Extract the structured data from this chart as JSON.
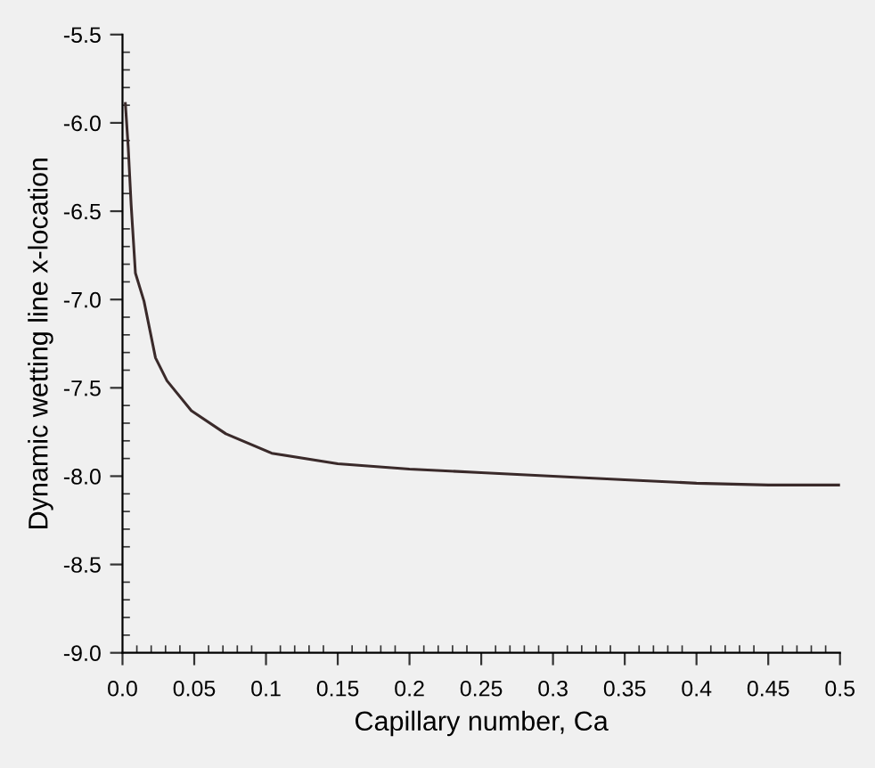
{
  "chart_data": {
    "type": "line",
    "xlabel": "Capillary number, Ca",
    "ylabel": "Dynamic wetting line x-location",
    "x": [
      0.002,
      0.004,
      0.006,
      0.009,
      0.015,
      0.023,
      0.031,
      0.048,
      0.072,
      0.104,
      0.15,
      0.2,
      0.25,
      0.3,
      0.35,
      0.4,
      0.45,
      0.5
    ],
    "series": [
      {
        "color": "#3a2a2a",
        "values": [
          -5.89,
          -6.14,
          -6.46,
          -6.85,
          -7.01,
          -7.33,
          -7.46,
          -7.63,
          -7.76,
          -7.87,
          -7.93,
          -7.96,
          -7.98,
          -8.0,
          -8.02,
          -8.04,
          -8.05,
          -8.05
        ]
      }
    ],
    "xlim": [
      0,
      0.5
    ],
    "ylim": [
      -9.0,
      -5.5
    ],
    "xticks": [
      {
        "value": 0,
        "label": "0.0"
      },
      0.05,
      0.1,
      0.15,
      0.2,
      0.25,
      0.3,
      0.35,
      0.4,
      0.45,
      0.5
    ],
    "yticks": [
      {
        "value": -9.0,
        "label": "-9.0"
      },
      {
        "value": -8.5,
        "label": "-8.5"
      },
      {
        "value": -8.0,
        "label": "-8.0"
      },
      {
        "value": -7.5,
        "label": "-7.5"
      },
      {
        "value": -7.0,
        "label": "-7.0"
      },
      {
        "value": -6.5,
        "label": "-6.5"
      },
      {
        "value": -6.0,
        "label": "-6.0"
      },
      {
        "value": -5.5,
        "label": "-5.5"
      }
    ],
    "grid": false,
    "legend": false,
    "marker": "none",
    "line_style": "solid"
  }
}
